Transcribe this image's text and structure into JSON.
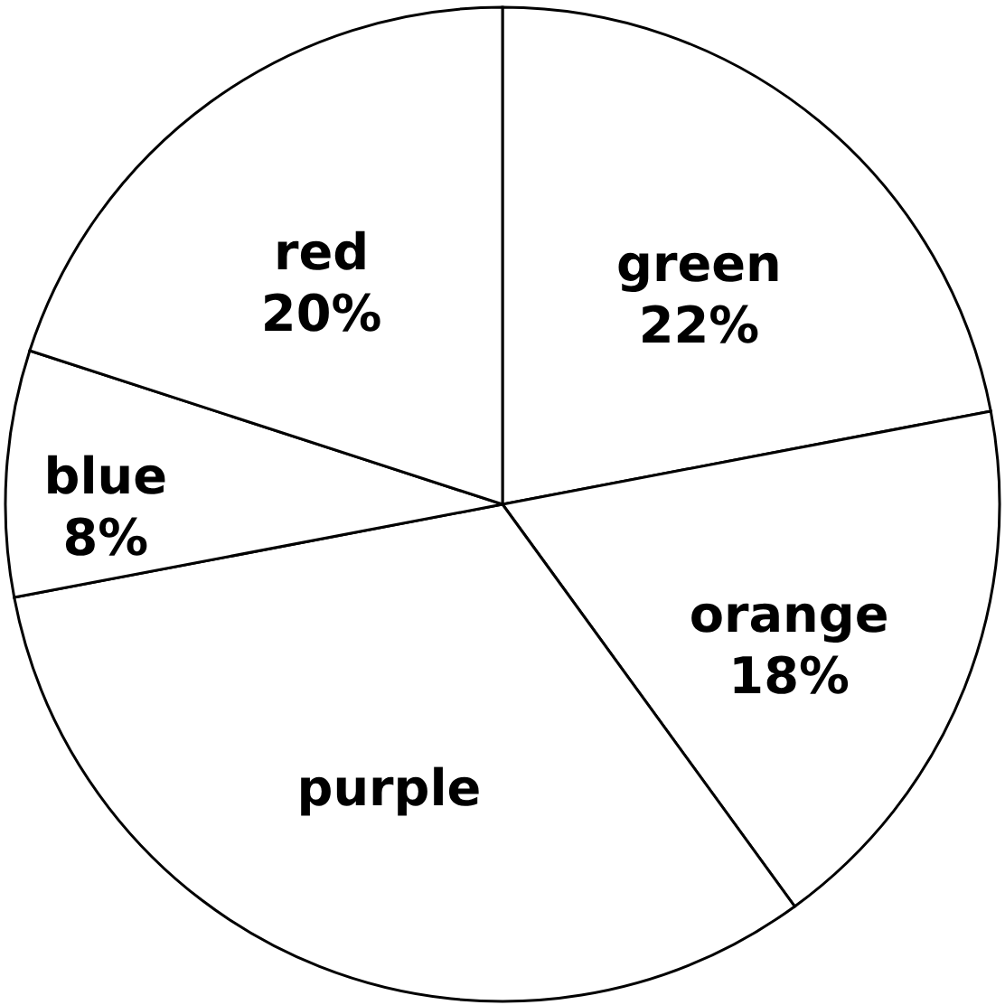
{
  "chart_data": {
    "type": "pie",
    "categories": [
      "green",
      "orange",
      "purple",
      "blue",
      "red"
    ],
    "values": [
      22,
      18,
      32,
      8,
      20
    ],
    "value_labels": [
      "22%",
      "18%",
      null,
      "8%",
      "20%"
    ],
    "colors": [
      "#ffffff",
      "#ffffff",
      "#ffffff",
      "#ffffff",
      "#ffffff"
    ],
    "legend": false
  }
}
